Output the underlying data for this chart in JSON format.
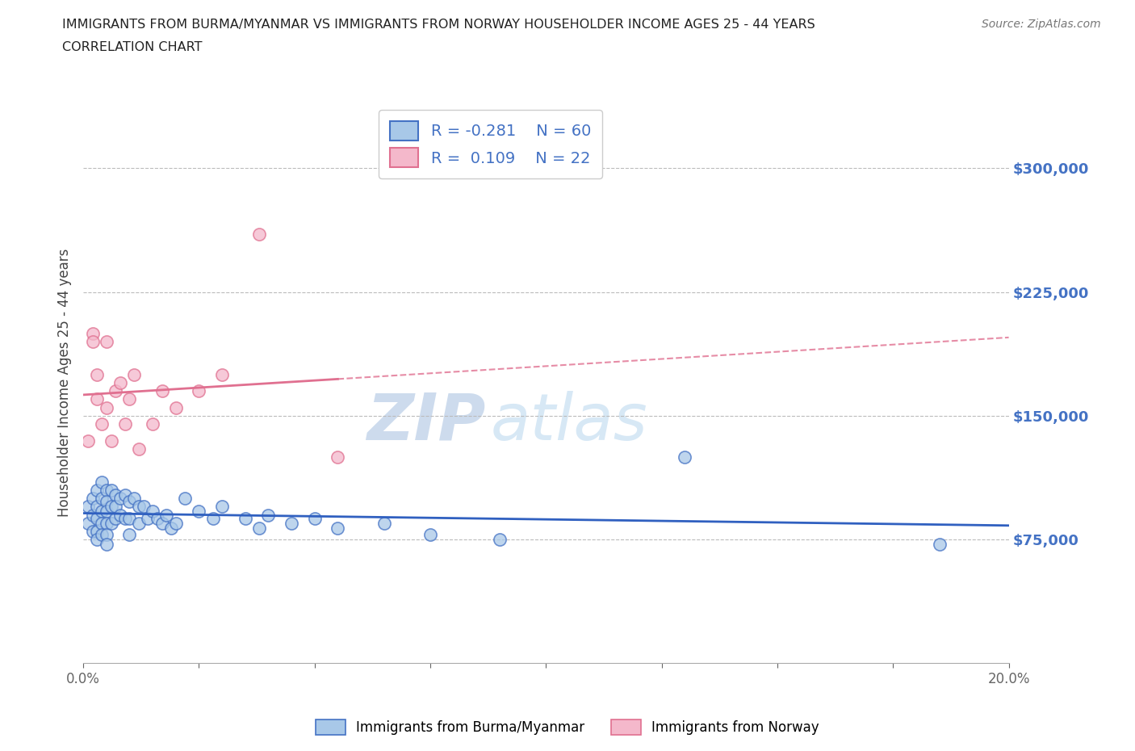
{
  "title_line1": "IMMIGRANTS FROM BURMA/MYANMAR VS IMMIGRANTS FROM NORWAY HOUSEHOLDER INCOME AGES 25 - 44 YEARS",
  "title_line2": "CORRELATION CHART",
  "source_text": "Source: ZipAtlas.com",
  "ylabel": "Householder Income Ages 25 - 44 years",
  "xlim": [
    0.0,
    0.2
  ],
  "ylim": [
    0,
    340000
  ],
  "yticks": [
    75000,
    150000,
    225000,
    300000
  ],
  "ytick_labels": [
    "$75,000",
    "$150,000",
    "$225,000",
    "$300,000"
  ],
  "xticks": [
    0.0,
    0.025,
    0.05,
    0.075,
    0.1,
    0.125,
    0.15,
    0.175,
    0.2
  ],
  "xtick_labels": [
    "0.0%",
    "",
    "",
    "",
    "",
    "",
    "",
    "",
    "20.0%"
  ],
  "watermark_zip": "ZIP",
  "watermark_atlas": "atlas",
  "legend_r1": "R = -0.281",
  "legend_n1": "N = 60",
  "legend_r2": "R =  0.109",
  "legend_n2": "N = 22",
  "color_burma_face": "#A8C8E8",
  "color_norway_face": "#F4B8CB",
  "color_burma_edge": "#4472C4",
  "color_norway_edge": "#E07090",
  "line_color_burma": "#3060C0",
  "line_color_norway": "#E07090",
  "background_color": "#FFFFFF",
  "scatter_burma_x": [
    0.001,
    0.001,
    0.002,
    0.002,
    0.002,
    0.003,
    0.003,
    0.003,
    0.003,
    0.003,
    0.004,
    0.004,
    0.004,
    0.004,
    0.004,
    0.005,
    0.005,
    0.005,
    0.005,
    0.005,
    0.005,
    0.006,
    0.006,
    0.006,
    0.007,
    0.007,
    0.007,
    0.008,
    0.008,
    0.009,
    0.009,
    0.01,
    0.01,
    0.01,
    0.011,
    0.012,
    0.012,
    0.013,
    0.014,
    0.015,
    0.016,
    0.017,
    0.018,
    0.019,
    0.02,
    0.022,
    0.025,
    0.028,
    0.03,
    0.035,
    0.038,
    0.04,
    0.045,
    0.05,
    0.055,
    0.065,
    0.075,
    0.09,
    0.13,
    0.185
  ],
  "scatter_burma_y": [
    95000,
    85000,
    100000,
    90000,
    80000,
    105000,
    95000,
    88000,
    80000,
    75000,
    110000,
    100000,
    92000,
    85000,
    78000,
    105000,
    98000,
    92000,
    85000,
    78000,
    72000,
    105000,
    95000,
    85000,
    102000,
    95000,
    88000,
    100000,
    90000,
    102000,
    88000,
    98000,
    88000,
    78000,
    100000,
    95000,
    85000,
    95000,
    88000,
    92000,
    88000,
    85000,
    90000,
    82000,
    85000,
    100000,
    92000,
    88000,
    95000,
    88000,
    82000,
    90000,
    85000,
    88000,
    82000,
    85000,
    78000,
    75000,
    125000,
    72000
  ],
  "scatter_norway_x": [
    0.001,
    0.002,
    0.002,
    0.003,
    0.003,
    0.004,
    0.005,
    0.005,
    0.006,
    0.007,
    0.008,
    0.009,
    0.01,
    0.011,
    0.012,
    0.015,
    0.017,
    0.02,
    0.025,
    0.03,
    0.038,
    0.055
  ],
  "scatter_norway_y": [
    135000,
    200000,
    195000,
    175000,
    160000,
    145000,
    195000,
    155000,
    135000,
    165000,
    170000,
    145000,
    160000,
    175000,
    130000,
    145000,
    165000,
    155000,
    165000,
    175000,
    260000,
    125000
  ]
}
